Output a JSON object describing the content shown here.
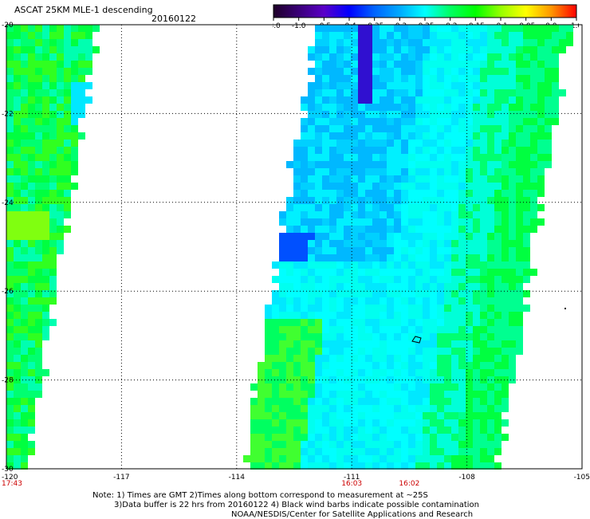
{
  "header": {
    "title": "ASCAT 25KM MLE-1 descending",
    "date": "20160122"
  },
  "colorbar": {
    "labels": [
      "-3.0",
      "-1.0",
      "-0.5",
      "-0.4",
      "-0.35",
      "-0.3",
      "-0.25",
      "-0.2",
      "-0.15",
      "-0.1",
      "-0.05",
      "0.0",
      "1.0"
    ],
    "colors": [
      "#1e0028",
      "#3a0078",
      "#5a00c8",
      "#0000ff",
      "#0064ff",
      "#00aaff",
      "#00ffff",
      "#00ff64",
      "#00ff00",
      "#96ff00",
      "#ffff00",
      "#ff9600",
      "#ff0000"
    ]
  },
  "map": {
    "lon_range": [
      -120,
      -105
    ],
    "lat_range": [
      -30,
      -20
    ],
    "lon_ticks": [
      "-120",
      "-117",
      "-114",
      "-111",
      "-108",
      "-105"
    ],
    "lat_ticks": [
      "-20",
      "-22",
      "-24",
      "-26",
      "-28",
      "-30"
    ],
    "pass_times": [
      {
        "label": "17:43",
        "lon": -120
      },
      {
        "label": "16:03",
        "lon": -111
      },
      {
        "label": "16:02",
        "lon": -109.5
      }
    ],
    "time_color": "#cc0000"
  },
  "notes": {
    "line1": "Note: 1) Times are GMT 2)Times along bottom correspond to measurement at ~25S",
    "line2": "3)Data buffer is 22 hrs from 20160122 4) Black wind barbs indicate possible contamination",
    "line3": "NOAA/NESDIS/Center for Satellite Applications and Research"
  }
}
